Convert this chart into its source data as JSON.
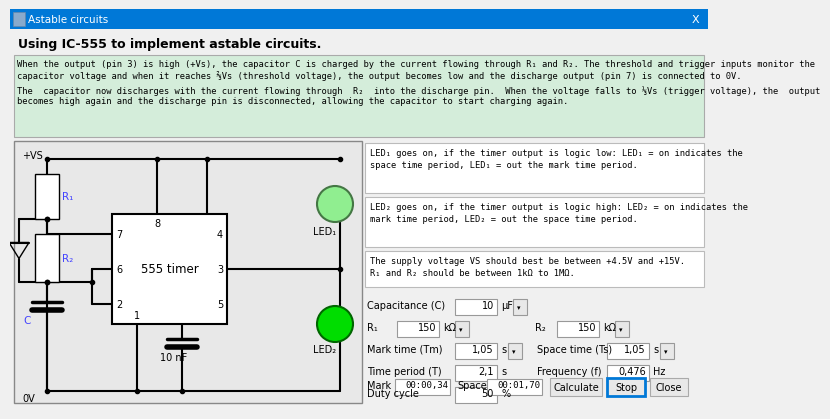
{
  "title_bar": "Astable circuits",
  "heading": "Using IC-555 to implement astable circuits.",
  "desc1": "When the output (pin 3) is high (+Vs), the capacitor C is charged by the current flowing through R₁ and R₂. The threshold and trigger inputs monitor the",
  "desc1b": "capacitor voltage and when it reaches ⅔Vs (threshold voltage), the output becomes low and the discharge output (pin 7) is connected to 0V.",
  "desc2": "The  capacitor now discharges with the current flowing through  R₂  into the discharge pin.  When the voltage falls to ⅓Vs (trigger voltage), the  output",
  "desc2b": "becomes high again and the discharge pin is disconnected, allowing the capacitor to start charging again.",
  "led1_line1": "LED₁ goes on, if the timer output is logic low: LED₁ = on indicates the",
  "led1_line2": "space time period, LED₁ = out the mark time period.",
  "led2_line1": "LED₂ goes on, if the timer output is logic high: LED₂ = on indicates the",
  "led2_line2": "mark time period, LED₂ = out the space time period.",
  "supply_line1": "The supply voltage VS should best be between +4.5V and +15V.",
  "supply_line2": "R₁ and R₂ should be between 1kΩ to 1MΩ.",
  "cap_label": "Capacitance (C)",
  "cap_value": "10",
  "cap_unit": "μF",
  "r1_label": "R₁",
  "r1_value": "150",
  "r1_unit": "kΩ",
  "r2_label": "R₂",
  "r2_value": "150",
  "r2_unit": "kΩ",
  "mark_time_label": "Mark time (Tm)",
  "mark_time_value": "1,05",
  "mark_time_unit": "s",
  "space_time_label": "Space time (Ts)",
  "space_time_value": "1,05",
  "space_time_unit": "s",
  "time_period_label": "Time period (T)",
  "time_period_value": "2,1",
  "time_period_unit": "s",
  "freq_label": "Frequency (f)",
  "freq_value": "0,476",
  "freq_unit": "Hz",
  "duty_label": "Duty cycle",
  "duty_value": "50",
  "duty_unit": "%",
  "mark_label": "Mark",
  "mark_value": "00:00,34",
  "space_label": "Space",
  "space_value": "00:01,70",
  "btn_calculate": "Calculate",
  "btn_stop": "Stop",
  "btn_close": "Close",
  "bg_color": "#f0f0f0",
  "titlebar_color": "#0078d7",
  "desc_bg": "#d4edda",
  "info_box_bg": "#ffffff",
  "led1_color": "#90ee90",
  "led2_color": "#00dd00",
  "wire_color": "#000000",
  "r1_color": "#4444ff",
  "r2_color": "#4444ff",
  "c_color": "#4444ff"
}
